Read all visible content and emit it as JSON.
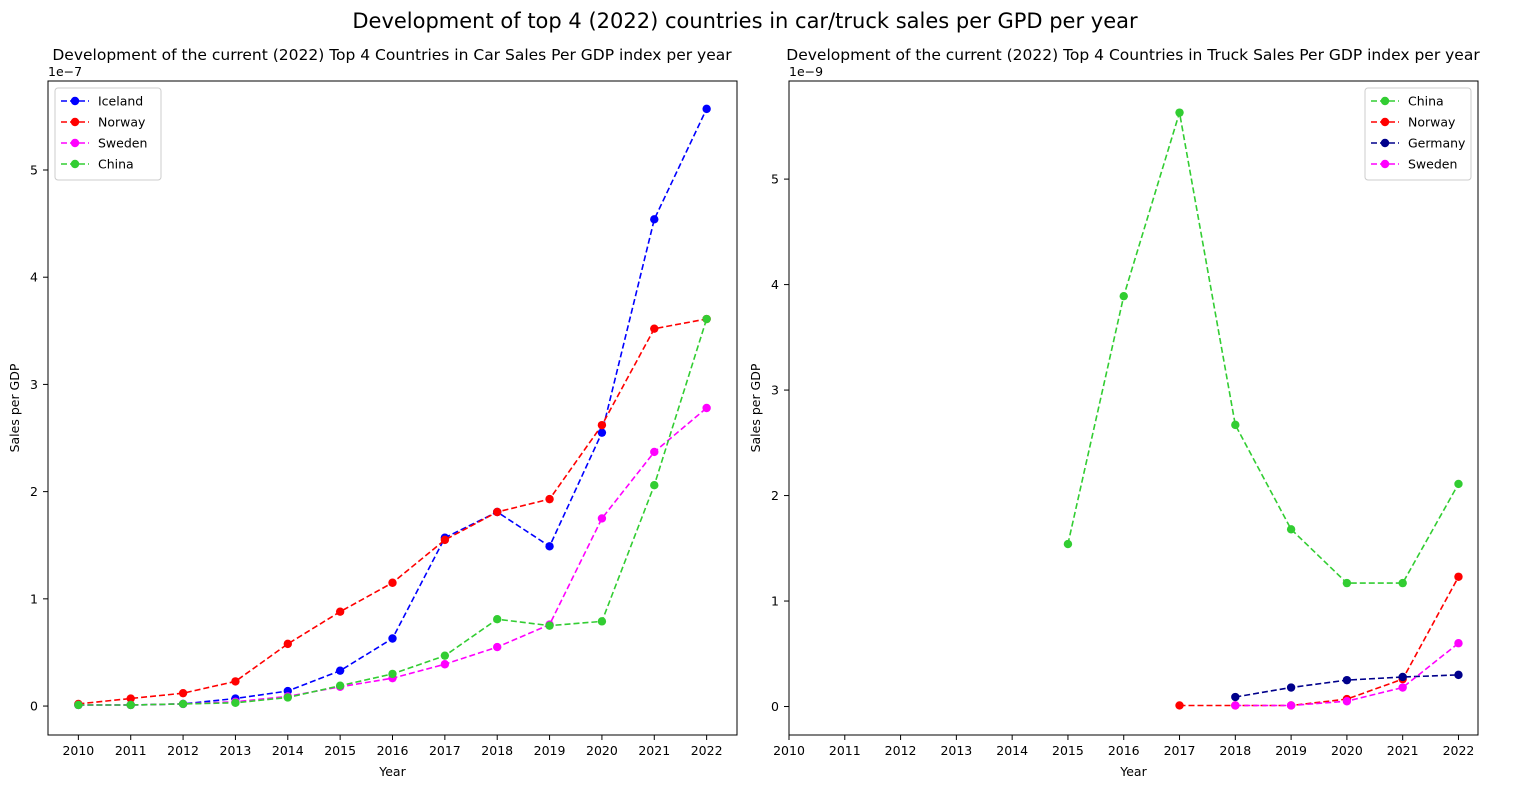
{
  "figure_title": "Development of top 4 (2022) countries in car/truck sales per GPD per year",
  "chart_data": [
    {
      "type": "line",
      "title": "Development of the current (2022) Top 4 Countries in Car Sales Per GDP index per year",
      "xlabel": "Year",
      "ylabel": "Sales per GDP",
      "offset_label": "1e−7",
      "x": [
        2010,
        2011,
        2012,
        2013,
        2014,
        2015,
        2016,
        2017,
        2018,
        2019,
        2020,
        2021,
        2022
      ],
      "xlim": [
        2009.42,
        2022.58
      ],
      "ylim": [
        -0.27,
        5.83
      ],
      "yticks": [
        0,
        1,
        2,
        3,
        4,
        5
      ],
      "legend_position": "upper-left",
      "grid": false,
      "series": [
        {
          "name": "Iceland",
          "color": "#0000ff",
          "x": [
            2010,
            2011,
            2012,
            2013,
            2014,
            2015,
            2016,
            2017,
            2018,
            2019,
            2020,
            2021,
            2022
          ],
          "values": [
            0.01,
            0.01,
            0.02,
            0.07,
            0.14,
            0.33,
            0.63,
            1.57,
            1.81,
            1.49,
            2.55,
            4.54,
            5.57
          ]
        },
        {
          "name": "Norway",
          "color": "#ff0000",
          "x": [
            2010,
            2011,
            2012,
            2013,
            2014,
            2015,
            2016,
            2017,
            2018,
            2019,
            2020,
            2021,
            2022
          ],
          "values": [
            0.02,
            0.07,
            0.12,
            0.23,
            0.58,
            0.88,
            1.15,
            1.55,
            1.81,
            1.93,
            2.62,
            3.52,
            3.61
          ]
        },
        {
          "name": "Sweden",
          "color": "#ff00ff",
          "x": [
            2010,
            2011,
            2012,
            2013,
            2014,
            2015,
            2016,
            2017,
            2018,
            2019,
            2020,
            2021,
            2022
          ],
          "values": [
            0.01,
            0.01,
            0.02,
            0.04,
            0.09,
            0.18,
            0.26,
            0.39,
            0.55,
            0.76,
            1.75,
            2.37,
            2.78
          ]
        },
        {
          "name": "China",
          "color": "#32cd32",
          "x": [
            2010,
            2011,
            2012,
            2013,
            2014,
            2015,
            2016,
            2017,
            2018,
            2019,
            2020,
            2021,
            2022
          ],
          "values": [
            0.01,
            0.01,
            0.02,
            0.03,
            0.08,
            0.19,
            0.3,
            0.47,
            0.81,
            0.75,
            0.79,
            2.06,
            3.61
          ]
        }
      ]
    },
    {
      "type": "line",
      "title": "Development of the current (2022) Top 4 Countries in Truck Sales Per GDP index per year",
      "xlabel": "Year",
      "ylabel": "Sales per GDP",
      "offset_label": "1e−9",
      "x": [
        2010,
        2011,
        2012,
        2013,
        2014,
        2015,
        2016,
        2017,
        2018,
        2019,
        2020,
        2021,
        2022
      ],
      "xlim": [
        2010,
        2022.35
      ],
      "ylim": [
        -0.27,
        5.93
      ],
      "yticks": [
        0,
        1,
        2,
        3,
        4,
        5
      ],
      "legend_position": "upper-right",
      "grid": false,
      "series": [
        {
          "name": "China",
          "color": "#32cd32",
          "x": [
            2015,
            2016,
            2017,
            2018,
            2019,
            2020,
            2021,
            2022
          ],
          "values": [
            1.54,
            3.89,
            5.63,
            2.67,
            1.68,
            1.17,
            1.17,
            2.11
          ]
        },
        {
          "name": "Norway",
          "color": "#ff0000",
          "x": [
            2017,
            2018,
            2019,
            2020,
            2021,
            2022
          ],
          "values": [
            0.01,
            0.01,
            0.01,
            0.07,
            0.26,
            1.23
          ]
        },
        {
          "name": "Germany",
          "color": "#00008b",
          "x": [
            2018,
            2019,
            2020,
            2021,
            2022
          ],
          "values": [
            0.09,
            0.18,
            0.25,
            0.28,
            0.3
          ]
        },
        {
          "name": "Sweden",
          "color": "#ff00ff",
          "x": [
            2018,
            2019,
            2020,
            2021,
            2022
          ],
          "values": [
            0.01,
            0.01,
            0.05,
            0.18,
            0.6
          ]
        }
      ]
    }
  ]
}
